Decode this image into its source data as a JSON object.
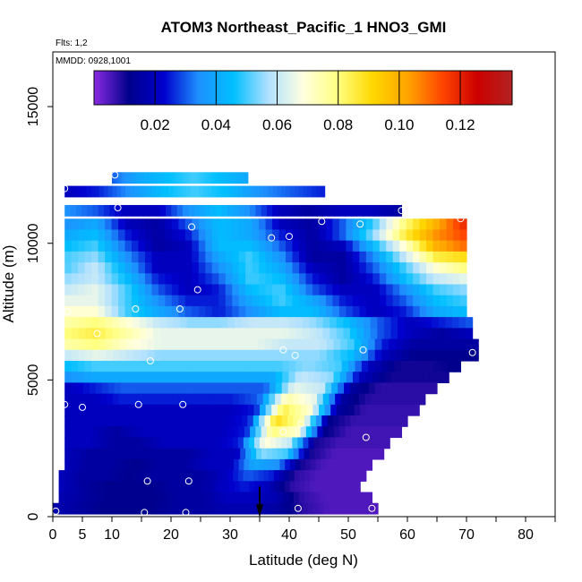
{
  "chart_data": {
    "type": "heatmap",
    "title": "ATOM3 Northeast_Pacific_1 HNO3_GMI",
    "annotations": [
      "Flts: 1,2",
      "MMDD: 0928,1001"
    ],
    "xlabel": "Latitude (deg N)",
    "ylabel": "Altitude (m)",
    "xlim": [
      0,
      85
    ],
    "ylim": [
      0,
      17000
    ],
    "x_ticks": [
      0,
      5,
      10,
      20,
      30,
      40,
      50,
      60,
      70,
      80
    ],
    "y_ticks": [
      0,
      5000,
      10000,
      15000
    ],
    "colorbar": {
      "min": 0.0,
      "max": 0.137,
      "ticks": [
        0.02,
        0.04,
        0.06,
        0.08,
        0.1,
        0.12
      ],
      "tick_labels": [
        "0.02",
        "0.04",
        "0.06",
        "0.08",
        "0.10",
        "0.12"
      ],
      "colors": [
        "#8a2be2",
        "#00008b",
        "#0000cd",
        "#1e90ff",
        "#00bfff",
        "#b0e0ff",
        "#ffffe0",
        "#ffff80",
        "#ffd700",
        "#ffa500",
        "#ff4500",
        "#cc0000",
        "#b22222"
      ]
    },
    "rows": [
      {
        "alt": 12400,
        "lat0": 10,
        "lat1": 33,
        "vals": [
          0.03,
          0.04,
          0.045,
          0.05,
          0.045,
          0.04
        ]
      },
      {
        "alt": 11900,
        "lat0": 2,
        "lat1": 46,
        "vals": [
          0.02,
          0.025,
          0.035,
          0.045,
          0.05,
          0.045,
          0.035,
          0.03,
          0.025
        ]
      },
      {
        "alt": 11200,
        "lat0": 2,
        "lat1": 59,
        "vals": [
          0.035,
          0.03,
          0.02,
          0.02,
          0.035,
          0.045,
          0.035,
          0.02,
          0.015,
          0.02,
          0.02,
          0.015
        ]
      },
      {
        "alt": 10700,
        "lat0": 2,
        "lat1": 70,
        "vals": [
          0.035,
          0.04,
          0.02,
          0.015,
          0.03,
          0.045,
          0.04,
          0.02,
          0.015,
          0.03,
          0.05,
          0.08,
          0.1,
          0.12
        ]
      },
      {
        "alt": 10300,
        "lat0": 2,
        "lat1": 70,
        "vals": [
          0.04,
          0.045,
          0.025,
          0.015,
          0.025,
          0.045,
          0.04,
          0.025,
          0.015,
          0.03,
          0.055,
          0.085,
          0.105,
          0.115
        ]
      },
      {
        "alt": 9900,
        "lat0": 2,
        "lat1": 70,
        "vals": [
          0.045,
          0.05,
          0.03,
          0.015,
          0.02,
          0.045,
          0.045,
          0.03,
          0.015,
          0.02,
          0.045,
          0.07,
          0.1,
          0.11
        ]
      },
      {
        "alt": 9500,
        "lat0": 2,
        "lat1": 70,
        "vals": [
          0.05,
          0.055,
          0.035,
          0.02,
          0.02,
          0.04,
          0.05,
          0.035,
          0.015,
          0.015,
          0.035,
          0.06,
          0.085,
          0.09
        ]
      },
      {
        "alt": 9100,
        "lat0": 2,
        "lat1": 70,
        "vals": [
          0.05,
          0.06,
          0.04,
          0.02,
          0.02,
          0.035,
          0.05,
          0.04,
          0.02,
          0.015,
          0.03,
          0.05,
          0.07,
          0.08
        ]
      },
      {
        "alt": 8700,
        "lat0": 2,
        "lat1": 70,
        "vals": [
          0.055,
          0.06,
          0.045,
          0.025,
          0.02,
          0.03,
          0.05,
          0.045,
          0.025,
          0.015,
          0.025,
          0.045,
          0.06,
          0.065
        ]
      },
      {
        "alt": 8300,
        "lat0": 2,
        "lat1": 70,
        "vals": [
          0.06,
          0.065,
          0.05,
          0.03,
          0.02,
          0.025,
          0.045,
          0.05,
          0.03,
          0.02,
          0.02,
          0.035,
          0.05,
          0.055
        ]
      },
      {
        "alt": 7900,
        "lat0": 2,
        "lat1": 70,
        "vals": [
          0.065,
          0.065,
          0.05,
          0.035,
          0.025,
          0.025,
          0.04,
          0.05,
          0.04,
          0.025,
          0.02,
          0.03,
          0.045,
          0.05
        ]
      },
      {
        "alt": 7500,
        "lat0": 2,
        "lat1": 70,
        "vals": [
          0.07,
          0.07,
          0.05,
          0.04,
          0.03,
          0.025,
          0.035,
          0.045,
          0.045,
          0.03,
          0.02,
          0.025,
          0.04,
          0.045
        ]
      },
      {
        "alt": 7100,
        "lat0": 2,
        "lat1": 71,
        "vals": [
          0.075,
          0.08,
          0.07,
          0.06,
          0.055,
          0.055,
          0.06,
          0.06,
          0.055,
          0.045,
          0.03,
          0.02,
          0.025,
          0.03
        ]
      },
      {
        "alt": 6700,
        "lat0": 2,
        "lat1": 71,
        "vals": [
          0.08,
          0.085,
          0.075,
          0.065,
          0.065,
          0.065,
          0.065,
          0.065,
          0.06,
          0.05,
          0.03,
          0.02,
          0.015,
          0.02
        ]
      },
      {
        "alt": 6300,
        "lat0": 2,
        "lat1": 72,
        "vals": [
          0.075,
          0.08,
          0.07,
          0.065,
          0.065,
          0.065,
          0.065,
          0.06,
          0.06,
          0.05,
          0.025,
          0.015,
          0.015,
          0.015
        ]
      },
      {
        "alt": 5900,
        "lat0": 2,
        "lat1": 72,
        "vals": [
          0.06,
          0.065,
          0.06,
          0.055,
          0.055,
          0.055,
          0.055,
          0.055,
          0.055,
          0.045,
          0.02,
          0.012,
          0.012,
          0.012
        ]
      },
      {
        "alt": 5500,
        "lat0": 2,
        "lat1": 69,
        "vals": [
          0.045,
          0.05,
          0.05,
          0.05,
          0.05,
          0.05,
          0.05,
          0.05,
          0.055,
          0.05,
          0.02,
          0.01,
          0.01,
          0.012
        ]
      },
      {
        "alt": 5100,
        "lat0": 2,
        "lat1": 67,
        "vals": [
          0.035,
          0.04,
          0.04,
          0.04,
          0.04,
          0.04,
          0.04,
          0.04,
          0.06,
          0.055,
          0.02,
          0.01,
          0.01,
          0.01
        ]
      },
      {
        "alt": 4700,
        "lat0": 2,
        "lat1": 65,
        "vals": [
          0.02,
          0.025,
          0.03,
          0.03,
          0.03,
          0.03,
          0.03,
          0.03,
          0.065,
          0.06,
          0.015,
          0.008,
          0.008,
          0.008
        ]
      },
      {
        "alt": 4300,
        "lat0": 2,
        "lat1": 63,
        "vals": [
          0.02,
          0.02,
          0.025,
          0.025,
          0.025,
          0.025,
          0.025,
          0.03,
          0.075,
          0.065,
          0.015,
          0.008,
          0.008,
          0.008
        ]
      },
      {
        "alt": 3900,
        "lat0": 2,
        "lat1": 62,
        "vals": [
          0.02,
          0.02,
          0.02,
          0.02,
          0.02,
          0.02,
          0.02,
          0.025,
          0.085,
          0.07,
          0.015,
          0.007,
          0.007,
          0.007
        ]
      },
      {
        "alt": 3500,
        "lat0": 2,
        "lat1": 60,
        "vals": [
          0.02,
          0.02,
          0.02,
          0.02,
          0.02,
          0.02,
          0.02,
          0.025,
          0.09,
          0.075,
          0.012,
          0.007,
          0.007,
          0.007
        ]
      },
      {
        "alt": 3100,
        "lat0": 2,
        "lat1": 59,
        "vals": [
          0.02,
          0.02,
          0.015,
          0.02,
          0.02,
          0.02,
          0.02,
          0.025,
          0.08,
          0.07,
          0.012,
          0.006,
          0.006,
          0.006
        ]
      },
      {
        "alt": 2700,
        "lat0": 2,
        "lat1": 57,
        "vals": [
          0.02,
          0.02,
          0.015,
          0.015,
          0.02,
          0.02,
          0.02,
          0.025,
          0.07,
          0.06,
          0.01,
          0.006,
          0.006,
          0.006
        ]
      },
      {
        "alt": 2300,
        "lat0": 2,
        "lat1": 56,
        "vals": [
          0.02,
          0.015,
          0.015,
          0.015,
          0.015,
          0.015,
          0.02,
          0.02,
          0.055,
          0.05,
          0.01,
          0.005,
          0.005,
          0.005
        ]
      },
      {
        "alt": 1900,
        "lat0": 2,
        "lat1": 54,
        "vals": [
          0.02,
          0.015,
          0.015,
          0.012,
          0.015,
          0.015,
          0.02,
          0.02,
          0.04,
          0.035,
          0.01,
          0.005,
          0.005,
          0.005
        ]
      },
      {
        "alt": 1500,
        "lat0": 1,
        "lat1": 53,
        "vals": [
          0.02,
          0.015,
          0.015,
          0.012,
          0.015,
          0.015,
          0.015,
          0.02,
          0.03,
          0.025,
          0.008,
          0.005,
          0.005,
          0.005
        ]
      },
      {
        "alt": 1100,
        "lat0": 1,
        "lat1": 52,
        "vals": [
          0.02,
          0.015,
          0.012,
          0.012,
          0.012,
          0.015,
          0.015,
          0.02,
          0.025,
          0.02,
          0.008,
          0.005,
          0.005,
          0.005
        ]
      },
      {
        "alt": 700,
        "lat0": 1,
        "lat1": 54,
        "vals": [
          0.018,
          0.015,
          0.012,
          0.012,
          0.012,
          0.015,
          0.015,
          0.02,
          0.02,
          0.018,
          0.008,
          0.005,
          0.005,
          0.005
        ]
      },
      {
        "alt": 300,
        "lat0": 0,
        "lat1": 55,
        "vals": [
          0.018,
          0.015,
          0.012,
          0.012,
          0.012,
          0.015,
          0.015,
          0.018,
          0.018,
          0.015,
          0.008,
          0.005,
          0.005,
          0.005
        ]
      }
    ],
    "points": [
      [
        2,
        12000
      ],
      [
        10.5,
        12500
      ],
      [
        11,
        11300
      ],
      [
        23.5,
        10600
      ],
      [
        37,
        10200
      ],
      [
        40,
        10250
      ],
      [
        45.5,
        10800
      ],
      [
        52,
        10700
      ],
      [
        59,
        11200
      ],
      [
        69,
        10900
      ],
      [
        24.5,
        8300
      ],
      [
        14,
        7600
      ],
      [
        21.5,
        7600
      ],
      [
        2.5,
        7500
      ],
      [
        7.5,
        6700
      ],
      [
        16.5,
        5700
      ],
      [
        39,
        6100
      ],
      [
        41,
        5900
      ],
      [
        52.5,
        6100
      ],
      [
        71,
        6000
      ],
      [
        2,
        4100
      ],
      [
        5,
        4000
      ],
      [
        14.5,
        4100
      ],
      [
        22,
        4100
      ],
      [
        39,
        3100
      ],
      [
        42,
        3400
      ],
      [
        53,
        2900
      ],
      [
        16,
        1300
      ],
      [
        23,
        1300
      ],
      [
        0.5,
        200
      ],
      [
        15.5,
        150
      ],
      [
        22.5,
        150
      ],
      [
        41.5,
        300
      ],
      [
        54,
        300
      ]
    ],
    "arrow_lat": 35
  }
}
